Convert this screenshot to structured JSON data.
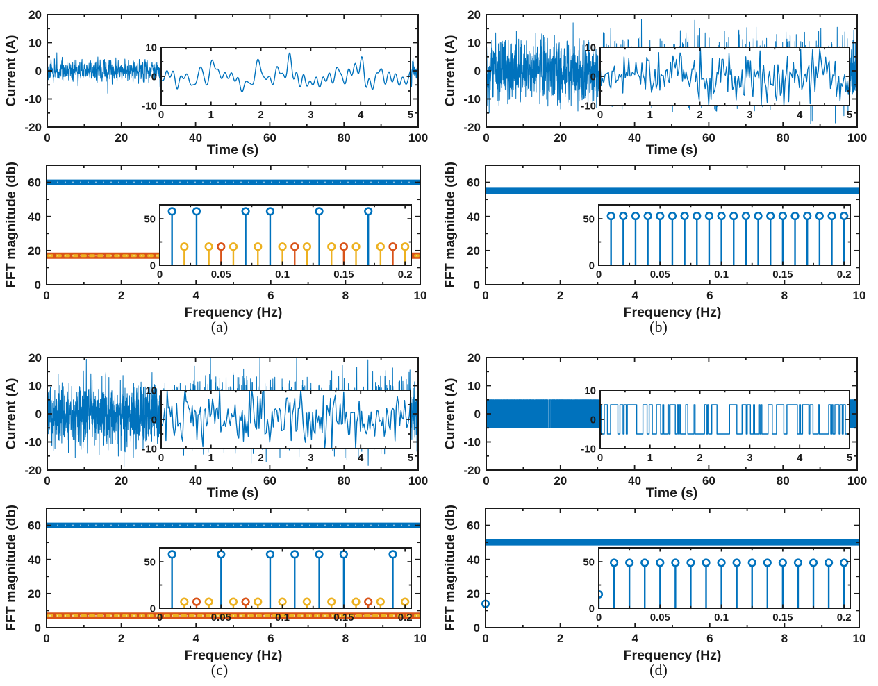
{
  "palette": {
    "blue": "#0072BD",
    "orange": "#D95319",
    "yellow": "#EDB120",
    "axis": "#1a1a1a"
  },
  "chart_data": [
    {
      "panel": "a",
      "caption": "(a)",
      "time": {
        "type": "line",
        "xlabel": "Time (s)",
        "ylabel": "Current (A)",
        "xlim": [
          0,
          100
        ],
        "ylim": [
          -20,
          20
        ],
        "xticks": [
          0,
          20,
          40,
          60,
          80,
          100
        ],
        "yticks": [
          -20,
          -10,
          0,
          10,
          20
        ],
        "grid": false,
        "signal": {
          "kind": "multisine",
          "amplitude": 8,
          "components": 30,
          "seed": 101,
          "points": 2600
        },
        "inset": {
          "xlim": [
            0,
            5
          ],
          "ylim": [
            -10,
            10
          ],
          "xticks": [
            0,
            1,
            2,
            3,
            4,
            5
          ],
          "yticks": [
            -10,
            0,
            10
          ],
          "signal": {
            "kind": "multisine",
            "amplitude": 8,
            "components": 30,
            "seed": 101,
            "points": 430
          }
        }
      },
      "fft": {
        "type": "stem",
        "xlabel": "Frequency (Hz)",
        "ylabel": "FFT magnitude (db)",
        "xlim": [
          0,
          10
        ],
        "ylim": [
          0,
          70
        ],
        "xticks": [
          0,
          2,
          4,
          6,
          8,
          10
        ],
        "yticks": [
          0,
          20,
          40,
          60
        ],
        "bands": [
          {
            "level": 60,
            "color": "blue",
            "thickness": 8,
            "speckled": true
          },
          {
            "level": 17,
            "color": "orange",
            "thickness": 9,
            "speckled": true,
            "speckle_color": "yellow"
          }
        ],
        "markers": [],
        "inset": {
          "xlim": [
            0,
            0.205
          ],
          "ylim": [
            0,
            65
          ],
          "xticks": [
            0,
            0.05,
            0.1,
            0.15,
            0.2
          ],
          "yticks": [
            0,
            50
          ],
          "stem_groups": [
            {
              "color": "blue",
              "y": 58,
              "x": [
                0.01,
                0.03,
                0.07,
                0.09,
                0.13,
                0.17
              ]
            },
            {
              "color": "orange",
              "y": 20,
              "x": [
                0.05,
                0.11,
                0.15,
                0.19
              ]
            },
            {
              "color": "yellow",
              "y": 20,
              "x": [
                0.02,
                0.04,
                0.06,
                0.08,
                0.1,
                0.12,
                0.14,
                0.16,
                0.18,
                0.2
              ]
            }
          ]
        }
      }
    },
    {
      "panel": "b",
      "caption": "(b)",
      "time": {
        "type": "line",
        "xlabel": "Time (s)",
        "ylabel": "Current (A)",
        "xlim": [
          0,
          100
        ],
        "ylim": [
          -20,
          20
        ],
        "xticks": [
          0,
          20,
          40,
          60,
          80,
          100
        ],
        "yticks": [
          -20,
          -10,
          0,
          10,
          20
        ],
        "grid": false,
        "signal": {
          "kind": "noise",
          "sd": 5.5,
          "clip": 19,
          "seed": 202,
          "points": 2400
        },
        "inset": {
          "xlim": [
            0,
            5
          ],
          "ylim": [
            -10,
            10
          ],
          "xticks": [
            0,
            1,
            2,
            3,
            4,
            5
          ],
          "yticks": [
            -10,
            0,
            10
          ],
          "signal": {
            "kind": "noise",
            "sd": 4.3,
            "clip": 10,
            "seed": 203,
            "points": 210
          }
        }
      },
      "fft": {
        "type": "stem",
        "xlabel": "Frequency (Hz)",
        "ylabel": "FFT magnitude (db)",
        "xlim": [
          0,
          10
        ],
        "ylim": [
          0,
          70
        ],
        "xticks": [
          0,
          2,
          4,
          6,
          8,
          10
        ],
        "yticks": [
          0,
          20,
          40,
          60
        ],
        "bands": [
          {
            "level": 55,
            "color": "blue",
            "thickness": 9,
            "speckled": false
          }
        ],
        "markers": [],
        "inset": {
          "xlim": [
            0,
            0.205
          ],
          "ylim": [
            0,
            65
          ],
          "xticks": [
            0,
            0.05,
            0.1,
            0.15,
            0.2
          ],
          "yticks": [
            0,
            50
          ],
          "stem_groups": [
            {
              "color": "blue",
              "y": 53,
              "x": [
                0.01,
                0.02,
                0.03,
                0.04,
                0.05,
                0.06,
                0.07,
                0.08,
                0.09,
                0.1,
                0.11,
                0.12,
                0.13,
                0.14,
                0.15,
                0.16,
                0.17,
                0.18,
                0.19,
                0.2
              ]
            }
          ]
        }
      }
    },
    {
      "panel": "c",
      "caption": "(c)",
      "time": {
        "type": "line",
        "xlabel": "Time (s)",
        "ylabel": "Current (A)",
        "xlim": [
          0,
          100
        ],
        "ylim": [
          -20,
          20
        ],
        "xticks": [
          0,
          20,
          40,
          60,
          80,
          100
        ],
        "yticks": [
          -20,
          -10,
          0,
          10,
          20
        ],
        "grid": false,
        "signal": {
          "kind": "noise",
          "sd": 5.8,
          "clip": 20,
          "seed": 301,
          "points": 2400
        },
        "inset": {
          "xlim": [
            0,
            5
          ],
          "ylim": [
            -10,
            10
          ],
          "xticks": [
            0,
            1,
            2,
            3,
            4,
            5
          ],
          "yticks": [
            -10,
            0,
            10
          ],
          "signal": {
            "kind": "noise",
            "sd": 4.5,
            "clip": 10.5,
            "seed": 302,
            "points": 210
          }
        }
      },
      "fft": {
        "type": "stem",
        "xlabel": "Frequency (Hz)",
        "ylabel": "FFT magnitude (db)",
        "xlim": [
          0,
          10
        ],
        "ylim": [
          0,
          70
        ],
        "xticks": [
          0,
          2,
          4,
          6,
          8,
          10
        ],
        "yticks": [
          0,
          20,
          40,
          60
        ],
        "bands": [
          {
            "level": 60,
            "color": "blue",
            "thickness": 8,
            "speckled": true
          },
          {
            "level": 7,
            "color": "orange",
            "thickness": 9,
            "speckled": true,
            "speckle_color": "yellow"
          }
        ],
        "markers": [],
        "inset": {
          "xlim": [
            0,
            0.205
          ],
          "ylim": [
            0,
            65
          ],
          "xticks": [
            0,
            0.05,
            0.1,
            0.15,
            0.2
          ],
          "yticks": [
            0,
            50
          ],
          "stem_groups": [
            {
              "color": "blue",
              "y": 58,
              "x": [
                0.01,
                0.05,
                0.09,
                0.11,
                0.13,
                0.15,
                0.19
              ]
            },
            {
              "color": "orange",
              "y": 7,
              "x": [
                0.03,
                0.07,
                0.17
              ]
            },
            {
              "color": "yellow",
              "y": 7,
              "x": [
                0.02,
                0.04,
                0.06,
                0.08,
                0.1,
                0.12,
                0.14,
                0.16,
                0.18,
                0.2
              ]
            }
          ]
        }
      }
    },
    {
      "panel": "d",
      "caption": "(d)",
      "time": {
        "type": "line",
        "xlabel": "Time (s)",
        "ylabel": "Current (A)",
        "xlim": [
          0,
          100
        ],
        "ylim": [
          -20,
          20
        ],
        "xticks": [
          0,
          20,
          40,
          60,
          80,
          100
        ],
        "yticks": [
          -20,
          -10,
          0,
          10,
          20
        ],
        "grid": false,
        "signal": {
          "kind": "telegraph",
          "level": 5,
          "switch_prob": 0.5,
          "seed": 404,
          "points": 4000
        },
        "inset": {
          "xlim": [
            0,
            5
          ],
          "ylim": [
            -10,
            10
          ],
          "xticks": [
            0,
            1,
            2,
            3,
            4,
            5
          ],
          "yticks": [
            -10,
            0,
            10
          ],
          "signal": {
            "kind": "telegraph",
            "level": 5,
            "switch_prob": 0.3,
            "seed": 405,
            "points": 240
          }
        }
      },
      "fft": {
        "type": "stem",
        "xlabel": "Frequency (Hz)",
        "ylabel": "FFT magnitude (db)",
        "xlim": [
          0,
          10
        ],
        "ylim": [
          0,
          70
        ],
        "xticks": [
          0,
          2,
          4,
          6,
          8,
          10
        ],
        "yticks": [
          0,
          20,
          40,
          60
        ],
        "bands": [
          {
            "level": 50,
            "color": "blue",
            "thickness": 9,
            "speckled": false
          }
        ],
        "markers": [
          {
            "x": 0,
            "y": 14,
            "color": "blue"
          }
        ],
        "inset": {
          "xlim": [
            0,
            0.205
          ],
          "ylim": [
            0,
            65
          ],
          "xticks": [
            0,
            0.05,
            0.1,
            0.15,
            0.2
          ],
          "yticks": [
            0,
            50
          ],
          "stem_groups": [
            {
              "color": "blue",
              "y": 15,
              "x": [
                0
              ]
            },
            {
              "color": "blue",
              "y": 49,
              "x": [
                0.0125,
                0.025,
                0.0375,
                0.05,
                0.0625,
                0.075,
                0.0875,
                0.1,
                0.1125,
                0.125,
                0.1375,
                0.15,
                0.1625,
                0.175,
                0.1875,
                0.2
              ]
            }
          ]
        }
      }
    }
  ]
}
